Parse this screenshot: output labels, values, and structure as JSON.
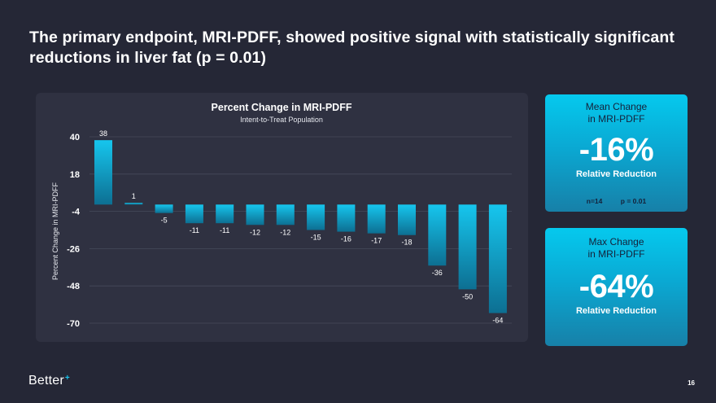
{
  "slide": {
    "title": "The primary endpoint, MRI-PDFF, showed positive signal with statistically significant reductions in liver fat (p = 0.01)",
    "page_number": "16",
    "logo_text": "Better",
    "logo_mark": "+"
  },
  "cards": {
    "mean": {
      "title_line1": "Mean Change",
      "title_line2": "in MRI-PDFF",
      "value": "-16%",
      "subtitle": "Relative Reduction",
      "n_label": "n=14",
      "p_label": "p = 0.01"
    },
    "max": {
      "title_line1": "Max Change",
      "title_line2": "in MRI-PDFF",
      "value": "-64%",
      "subtitle": "Relative Reduction"
    }
  },
  "colors": {
    "background": "#252736",
    "panel": "#2f3141",
    "bar_top": "#16c6ee",
    "bar_bottom": "#0d6f92",
    "accent": "#19c3ec"
  },
  "chart_data": {
    "type": "bar",
    "title": "Percent Change in MRI-PDFF",
    "subtitle": "Intent-to-Treat Population",
    "xlabel": "",
    "ylabel": "Percent Change in MRI-PDFF",
    "ylim": [
      -70,
      40
    ],
    "yticks": [
      40,
      18,
      -4,
      -26,
      -48,
      -70
    ],
    "grid": true,
    "values": [
      38,
      1,
      -5,
      -11,
      -11,
      -12,
      -12,
      -15,
      -16,
      -17,
      -18,
      -36,
      -50,
      -64
    ]
  }
}
